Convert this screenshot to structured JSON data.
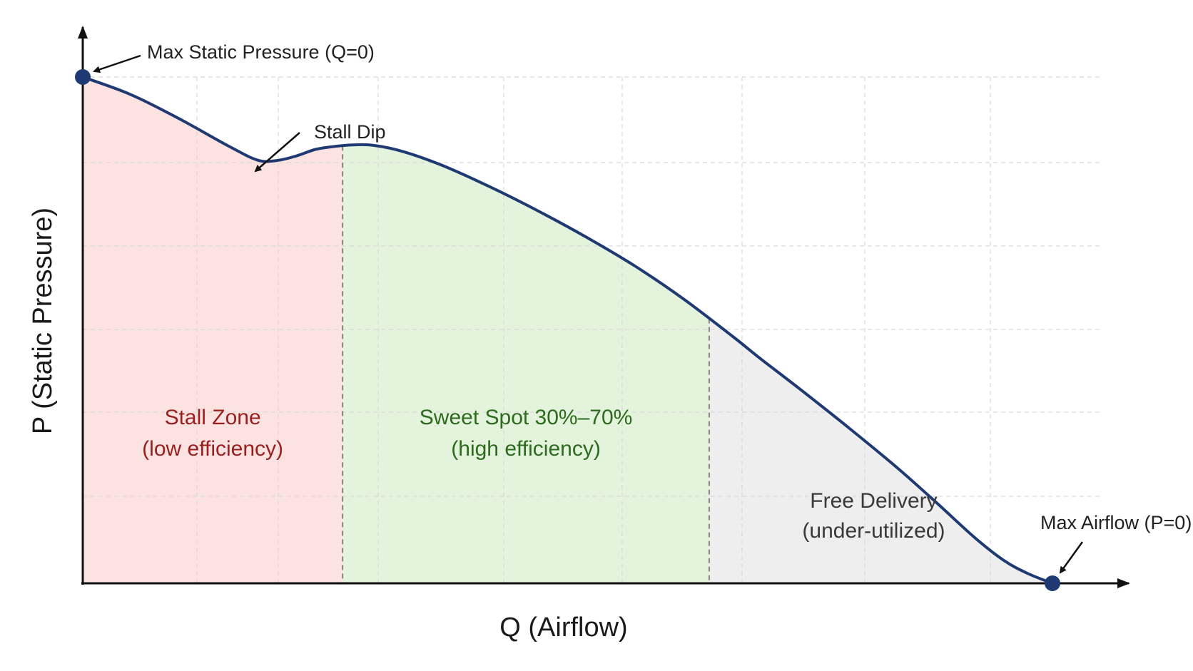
{
  "chart_data": {
    "type": "area",
    "title": "",
    "xlabel": "Q (Airflow)",
    "ylabel": "P (Static Pressure)",
    "xlim": [
      0,
      100
    ],
    "ylim": [
      0,
      100
    ],
    "grid": true,
    "ticks_shown": false,
    "curve": {
      "x": [
        0,
        5,
        10,
        15,
        18,
        20,
        22,
        24,
        26,
        28,
        30,
        33,
        37,
        42,
        47,
        52,
        57,
        62,
        67,
        70,
        74,
        79,
        84,
        88,
        92,
        95,
        97.5,
        100
      ],
      "y": [
        100,
        96.5,
        91.7,
        86.4,
        83.6,
        83.5,
        84.4,
        85.7,
        86.3,
        86.6,
        86.5,
        85.3,
        82.6,
        78.3,
        73.5,
        68.3,
        62.6,
        56.1,
        48.8,
        44.2,
        38.3,
        30.7,
        22.8,
        16.0,
        9.0,
        4.5,
        1.9,
        0
      ],
      "color": "#1f3a73"
    },
    "zones": [
      {
        "label_line1": "Stall Zone",
        "label_line2": "(low efficiency)",
        "x_start": 0,
        "x_end": 26.8,
        "fill": "#fde2e2",
        "text_color": "#9a1f1f"
      },
      {
        "label_line1": "Sweet Spot 30%–70%",
        "label_line2": "(high efficiency)",
        "x_start": 26.8,
        "x_end": 64.6,
        "fill": "#e3f3dc",
        "text_color": "#2e6b1f"
      },
      {
        "label_line1": "Free Delivery",
        "label_line2": "(under-utilized)",
        "x_start": 64.6,
        "x_end": 100,
        "fill": "#eeeeee",
        "text_color": "#3a3a3a"
      }
    ],
    "points": [
      {
        "name": "max-static-pressure",
        "x": 0,
        "y": 100,
        "label": "Max Static Pressure (Q=0)",
        "color": "#1f3a73"
      },
      {
        "name": "max-airflow",
        "x": 100,
        "y": 0,
        "label": "Max Airflow (P=0)",
        "color": "#1f3a73"
      }
    ],
    "annotations": [
      {
        "name": "stall-dip",
        "text": "Stall Dip",
        "x": 18,
        "y": 83.5
      }
    ]
  }
}
